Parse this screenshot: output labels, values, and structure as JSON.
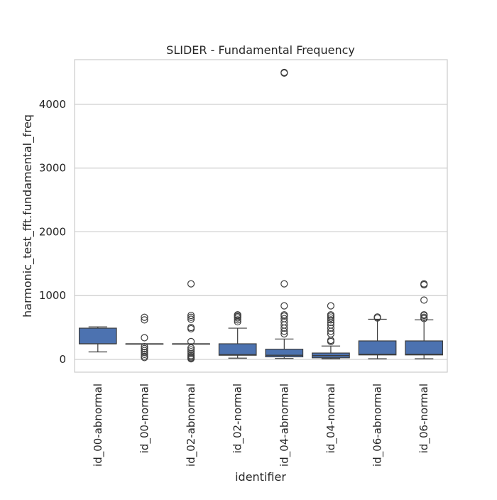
{
  "chart_data": {
    "type": "box",
    "title": "SLIDER - Fundamental Frequency",
    "xlabel": "identifier",
    "ylabel": "harmonic_test_fft.fundamental_freq",
    "ylim": [
      -200,
      4700
    ],
    "yticks": [
      0,
      1000,
      2000,
      3000,
      4000
    ],
    "grid": "horizontal",
    "color": "#4c72b0",
    "categories": [
      "id_00-abnormal",
      "id_00-normal",
      "id_02-abnormal",
      "id_02-normal",
      "id_04-abnormal",
      "id_04-normal",
      "id_06-abnormal",
      "id_06-normal"
    ],
    "boxes": [
      {
        "category": "id_00-abnormal",
        "whisker_low": 117,
        "q1": 245,
        "median": 245,
        "q3": 490,
        "whisker_high": 510,
        "outliers": []
      },
      {
        "category": "id_00-normal",
        "whisker_low": 245,
        "q1": 245,
        "median": 245,
        "q3": 245,
        "whisker_high": 245,
        "outliers": [
          30,
          50,
          80,
          110,
          140,
          170,
          200,
          340,
          620,
          660
        ]
      },
      {
        "category": "id_02-abnormal",
        "whisker_low": 245,
        "q1": 245,
        "median": 245,
        "q3": 245,
        "whisker_high": 245,
        "outliers": [
          10,
          25,
          40,
          60,
          90,
          120,
          150,
          180,
          280,
          480,
          500,
          630,
          660,
          690,
          1185
        ]
      },
      {
        "category": "id_02-normal",
        "whisker_low": 20,
        "q1": 65,
        "median": 75,
        "q3": 245,
        "whisker_high": 490,
        "outliers": [
          590,
          620,
          650,
          670,
          690,
          700
        ]
      },
      {
        "category": "id_04-abnormal",
        "whisker_low": 15,
        "q1": 40,
        "median": 65,
        "q3": 160,
        "whisker_high": 320,
        "outliers": [
          400,
          440,
          490,
          540,
          590,
          640,
          680,
          700,
          840,
          1185,
          4490,
          4500
        ]
      },
      {
        "category": "id_04-normal",
        "whisker_low": 10,
        "q1": 25,
        "median": 60,
        "q3": 100,
        "whisker_high": 210,
        "outliers": [
          280,
          300,
          400,
          440,
          490,
          540,
          580,
          620,
          650,
          680,
          700,
          840
        ]
      },
      {
        "category": "id_06-abnormal",
        "whisker_low": 10,
        "q1": 70,
        "median": 80,
        "q3": 290,
        "whisker_high": 630,
        "outliers": [
          650,
          665
        ]
      },
      {
        "category": "id_06-normal",
        "whisker_low": 10,
        "q1": 70,
        "median": 80,
        "q3": 290,
        "whisker_high": 620,
        "outliers": [
          640,
          660,
          690,
          700,
          930,
          1170,
          1185
        ]
      }
    ]
  }
}
